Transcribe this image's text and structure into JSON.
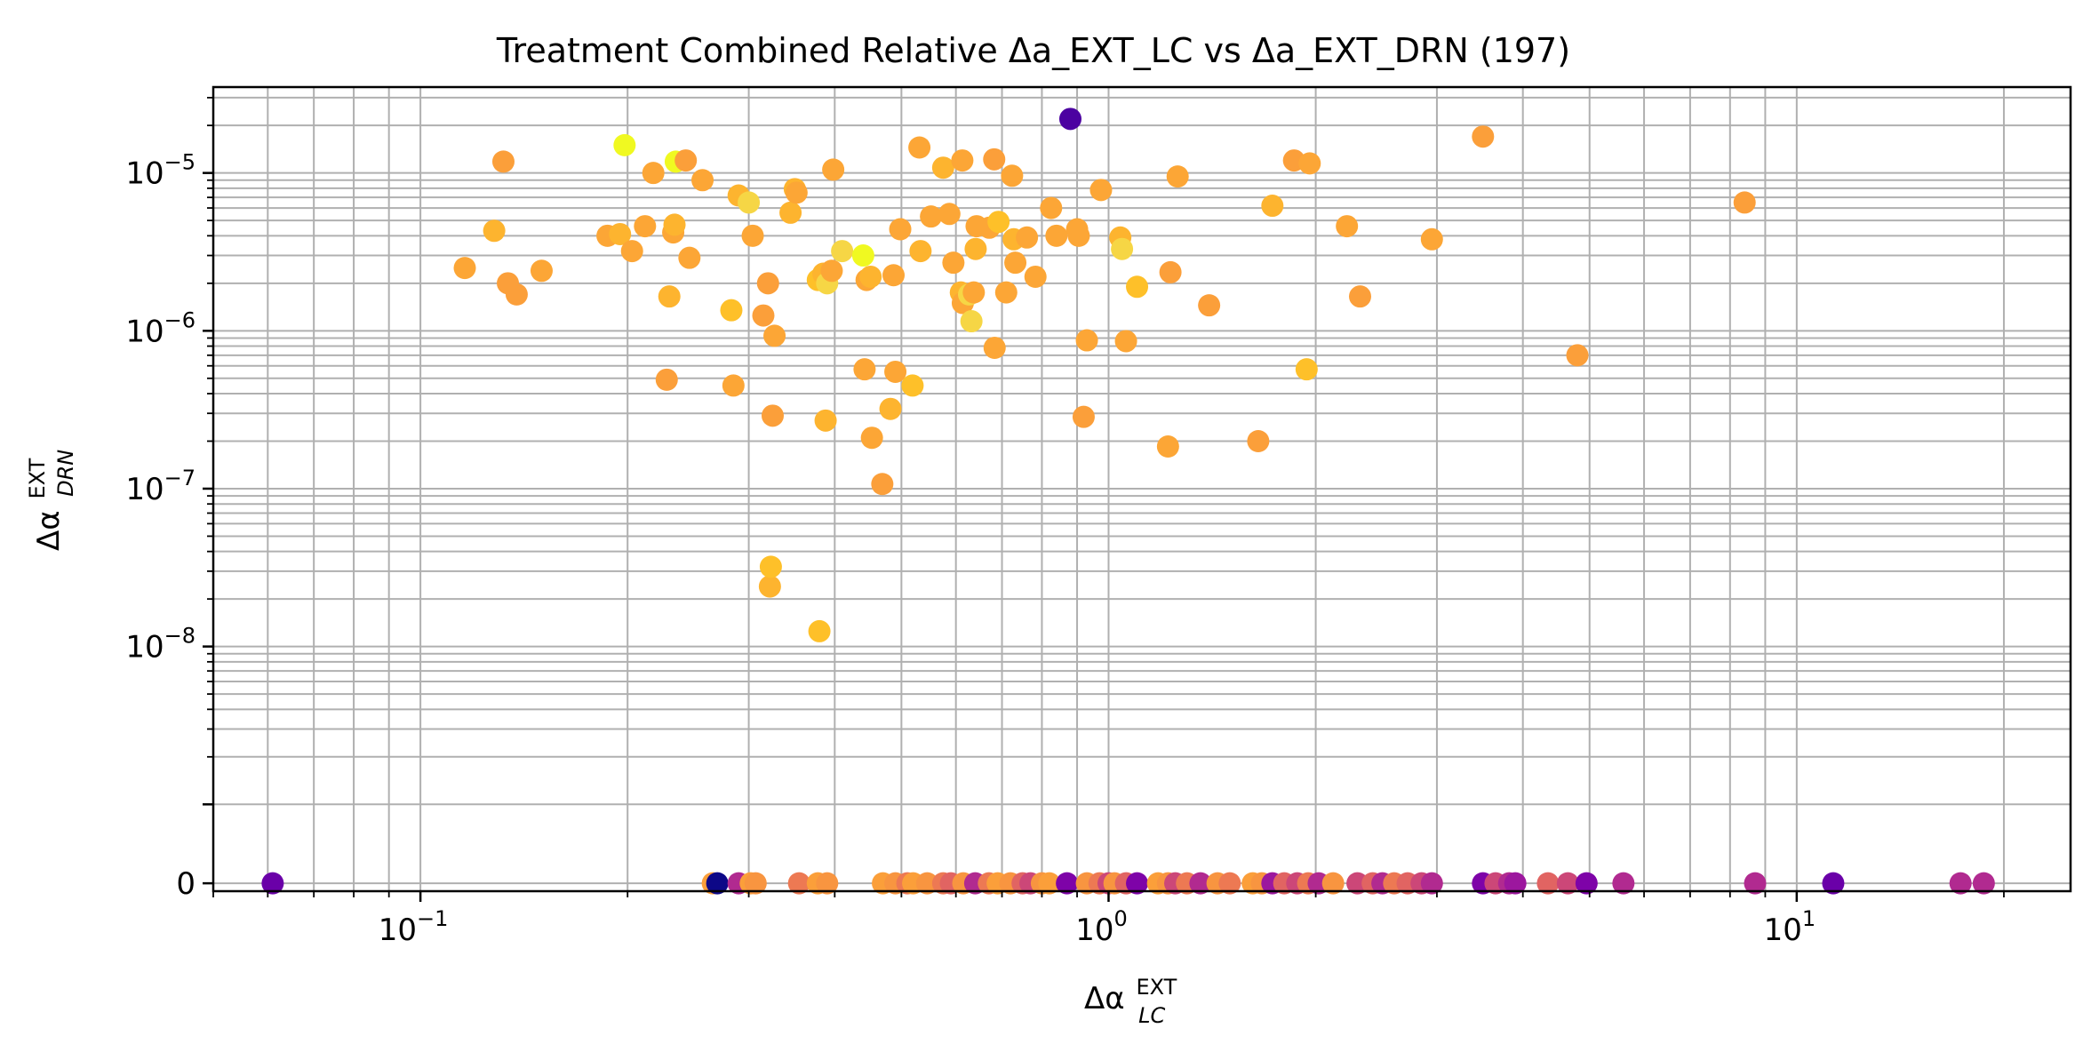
{
  "chart_data": {
    "type": "scatter",
    "title": "Treatment Combined Relative Δa_EXT_LC vs Δa_EXT_DRN (197)",
    "xlabel": {
      "base": "Δα",
      "sup": "EXT",
      "sub": "LC"
    },
    "ylabel": {
      "base": "Δα",
      "sup": "EXT",
      "sub": "DRN"
    },
    "x_scale": "log",
    "y_scale": "symlog",
    "y_linthresh": 1e-09,
    "xlim": [
      0.05,
      25
    ],
    "ylim": [
      -1e-10,
      3.5e-05
    ],
    "grid": true,
    "x_ticks": [
      {
        "value": 0.1,
        "base": "10",
        "exp": "−1"
      },
      {
        "value": 1,
        "base": "10",
        "exp": "0"
      },
      {
        "value": 10,
        "base": "10",
        "exp": "1"
      }
    ],
    "y_ticks": [
      {
        "value": 0,
        "label": "0"
      },
      {
        "value": 1e-08,
        "base": "10",
        "exp": "−8"
      },
      {
        "value": 1e-07,
        "base": "10",
        "exp": "−7"
      },
      {
        "value": 1e-06,
        "base": "10",
        "exp": "−6"
      },
      {
        "value": 1e-05,
        "base": "10",
        "exp": "−5"
      }
    ],
    "points": [
      [
        0.116,
        2.5e-06,
        "#fca636"
      ],
      [
        0.128,
        4.3e-06,
        "#fdb42f"
      ],
      [
        0.132,
        1.18e-05,
        "#fb9f3a"
      ],
      [
        0.134,
        2e-06,
        "#fb9f3a"
      ],
      [
        0.138,
        1.7e-06,
        "#fb9f3a"
      ],
      [
        0.15,
        2.4e-06,
        "#fca636"
      ],
      [
        0.187,
        4e-06,
        "#fca636"
      ],
      [
        0.195,
        4.1e-06,
        "#fdb42f"
      ],
      [
        0.198,
        1.5e-05,
        "#f0f921"
      ],
      [
        0.203,
        3.2e-06,
        "#fca636"
      ],
      [
        0.212,
        4.6e-06,
        "#fca636"
      ],
      [
        0.218,
        1e-05,
        "#fca636"
      ],
      [
        0.228,
        4.9e-07,
        "#fb9f3a"
      ],
      [
        0.23,
        1.65e-06,
        "#fdb42f"
      ],
      [
        0.233,
        4.2e-06,
        "#fca636"
      ],
      [
        0.234,
        4.7e-06,
        "#fdb42f"
      ],
      [
        0.235,
        1.18e-05,
        "#f0f921"
      ],
      [
        0.243,
        1.2e-05,
        "#fb9f3a"
      ],
      [
        0.246,
        2.9e-06,
        "#fca636"
      ],
      [
        0.257,
        9e-06,
        "#fca636"
      ],
      [
        0.283,
        1.35e-06,
        "#fec029"
      ],
      [
        0.285,
        4.5e-07,
        "#fca636"
      ],
      [
        0.29,
        7.2e-06,
        "#fdb42f"
      ],
      [
        0.3,
        6.5e-06,
        "#f6d645"
      ],
      [
        0.304,
        4e-06,
        "#fca636"
      ],
      [
        0.315,
        1.25e-06,
        "#fb9f3a"
      ],
      [
        0.32,
        2e-06,
        "#fb9f3a"
      ],
      [
        0.322,
        2.4e-08,
        "#fdb42f"
      ],
      [
        0.323,
        3.2e-08,
        "#fec029"
      ],
      [
        0.325,
        2.9e-07,
        "#fb9f3a"
      ],
      [
        0.327,
        9.3e-07,
        "#fca636"
      ],
      [
        0.345,
        5.6e-06,
        "#fdb42f"
      ],
      [
        0.35,
        7.9e-06,
        "#fdb42f"
      ],
      [
        0.352,
        7.5e-06,
        "#fca636"
      ],
      [
        0.378,
        2.1e-06,
        "#fec029"
      ],
      [
        0.38,
        1.25e-08,
        "#fec029"
      ],
      [
        0.385,
        2.3e-06,
        "#fdb42f"
      ],
      [
        0.388,
        2.7e-07,
        "#fdb42f"
      ],
      [
        0.39,
        2e-06,
        "#f6d645"
      ],
      [
        0.396,
        2.4e-06,
        "#fca636"
      ],
      [
        0.398,
        1.05e-05,
        "#fca636"
      ],
      [
        0.41,
        3.2e-06,
        "#f6d645"
      ],
      [
        0.44,
        3e-06,
        "#f0f921"
      ],
      [
        0.442,
        5.7e-07,
        "#fca636"
      ],
      [
        0.445,
        2.1e-06,
        "#fca636"
      ],
      [
        0.451,
        2.2e-06,
        "#fdb42f"
      ],
      [
        0.453,
        2.1e-07,
        "#fca636"
      ],
      [
        0.469,
        1.07e-07,
        "#fb9f3a"
      ],
      [
        0.482,
        3.2e-07,
        "#fdb42f"
      ],
      [
        0.487,
        2.25e-06,
        "#fca636"
      ],
      [
        0.49,
        5.5e-07,
        "#fca636"
      ],
      [
        0.498,
        4.4e-06,
        "#fca636"
      ],
      [
        0.519,
        4.5e-07,
        "#fec029"
      ],
      [
        0.531,
        1.45e-05,
        "#fca636"
      ],
      [
        0.533,
        3.2e-06,
        "#fdb42f"
      ],
      [
        0.552,
        5.3e-06,
        "#fca636"
      ],
      [
        0.575,
        1.08e-05,
        "#fdb42f"
      ],
      [
        0.587,
        5.5e-06,
        "#fca636"
      ],
      [
        0.595,
        2.7e-06,
        "#fca636"
      ],
      [
        0.61,
        1.75e-06,
        "#fdb42f"
      ],
      [
        0.613,
        1.2e-05,
        "#fca636"
      ],
      [
        0.614,
        1.5e-06,
        "#fca636"
      ],
      [
        0.627,
        1.7e-06,
        "#f6d645"
      ],
      [
        0.632,
        1.15e-06,
        "#f6d645"
      ],
      [
        0.637,
        1.75e-06,
        "#fca636"
      ],
      [
        0.641,
        3.3e-06,
        "#fdb42f"
      ],
      [
        0.643,
        4.6e-06,
        "#fca636"
      ],
      [
        0.671,
        4.5e-06,
        "#fca636"
      ],
      [
        0.682,
        1.22e-05,
        "#fb9f3a"
      ],
      [
        0.683,
        7.8e-07,
        "#fca636"
      ],
      [
        0.692,
        4.9e-06,
        "#fec029"
      ],
      [
        0.71,
        1.75e-06,
        "#fca636"
      ],
      [
        0.724,
        9.6e-06,
        "#fca636"
      ],
      [
        0.728,
        3.8e-06,
        "#fdb42f"
      ],
      [
        0.732,
        2.7e-06,
        "#fca636"
      ],
      [
        0.761,
        3.9e-06,
        "#fca636"
      ],
      [
        0.783,
        2.2e-06,
        "#fca636"
      ],
      [
        0.825,
        6e-06,
        "#fca636"
      ],
      [
        0.84,
        4e-06,
        "#fca636"
      ],
      [
        0.88,
        2.2e-05,
        "#4c02a1"
      ],
      [
        0.9,
        4.4e-06,
        "#fca636"
      ],
      [
        0.905,
        4e-06,
        "#fca636"
      ],
      [
        0.92,
        2.85e-07,
        "#fb9f3a"
      ],
      [
        0.93,
        8.7e-07,
        "#fca636"
      ],
      [
        0.975,
        7.8e-06,
        "#fca636"
      ],
      [
        1.04,
        3.9e-06,
        "#fdb42f"
      ],
      [
        1.046,
        3.3e-06,
        "#f6d645"
      ],
      [
        1.06,
        8.6e-07,
        "#fca636"
      ],
      [
        1.1,
        1.9e-06,
        "#fec029"
      ],
      [
        1.22,
        1.85e-07,
        "#fca636"
      ],
      [
        1.23,
        2.35e-06,
        "#fb9f3a"
      ],
      [
        1.26,
        9.5e-06,
        "#fca636"
      ],
      [
        1.4,
        1.45e-06,
        "#fb9f3a"
      ],
      [
        1.65,
        2e-07,
        "#fb9f3a"
      ],
      [
        1.73,
        6.2e-06,
        "#fdb42f"
      ],
      [
        1.86,
        1.2e-05,
        "#fb9f3a"
      ],
      [
        1.94,
        5.7e-07,
        "#fec029"
      ],
      [
        1.96,
        1.15e-05,
        "#fca636"
      ],
      [
        2.22,
        4.6e-06,
        "#fca636"
      ],
      [
        2.32,
        1.65e-06,
        "#fb9f3a"
      ],
      [
        2.95,
        3.8e-06,
        "#fca636"
      ],
      [
        3.5,
        1.7e-05,
        "#fb9f3a"
      ],
      [
        4.8,
        7e-07,
        "#fb9f3a"
      ],
      [
        8.4,
        6.5e-06,
        "#fb9f3a"
      ],
      [
        0.061,
        0,
        "#6a00a8"
      ],
      [
        0.266,
        0,
        "#fb9f3a"
      ],
      [
        0.27,
        0,
        "#0d0887"
      ],
      [
        0.29,
        0,
        "#b12a90"
      ],
      [
        0.302,
        0,
        "#fb9f3a"
      ],
      [
        0.307,
        0,
        "#f89540"
      ],
      [
        0.355,
        0,
        "#ed7953"
      ],
      [
        0.378,
        0,
        "#fb9f3a"
      ],
      [
        0.39,
        0,
        "#f89540"
      ],
      [
        0.47,
        0,
        "#fb9f3a"
      ],
      [
        0.49,
        0,
        "#f89540"
      ],
      [
        0.51,
        0,
        "#ed7953"
      ],
      [
        0.52,
        0,
        "#fb9f3a"
      ],
      [
        0.545,
        0,
        "#f89540"
      ],
      [
        0.575,
        0,
        "#ed7953"
      ],
      [
        0.59,
        0,
        "#e16462"
      ],
      [
        0.615,
        0,
        "#f89540"
      ],
      [
        0.64,
        0,
        "#b12a90"
      ],
      [
        0.67,
        0,
        "#ed7953"
      ],
      [
        0.69,
        0,
        "#fb9f3a"
      ],
      [
        0.72,
        0,
        "#f89540"
      ],
      [
        0.75,
        0,
        "#e16462"
      ],
      [
        0.77,
        0,
        "#cc4778"
      ],
      [
        0.8,
        0,
        "#f89540"
      ],
      [
        0.82,
        0,
        "#fb9f3a"
      ],
      [
        0.87,
        0,
        "#7e03a8"
      ],
      [
        0.93,
        0,
        "#f89540"
      ],
      [
        0.97,
        0,
        "#ed7953"
      ],
      [
        1.0,
        0,
        "#cc4778"
      ],
      [
        1.02,
        0,
        "#f89540"
      ],
      [
        1.06,
        0,
        "#e16462"
      ],
      [
        1.1,
        0,
        "#7e03a8"
      ],
      [
        1.18,
        0,
        "#fb9f3a"
      ],
      [
        1.22,
        0,
        "#f89540"
      ],
      [
        1.25,
        0,
        "#cc4778"
      ],
      [
        1.3,
        0,
        "#ed7953"
      ],
      [
        1.36,
        0,
        "#b12a90"
      ],
      [
        1.44,
        0,
        "#f89540"
      ],
      [
        1.5,
        0,
        "#ed7953"
      ],
      [
        1.62,
        0,
        "#fb9f3a"
      ],
      [
        1.67,
        0,
        "#f89540"
      ],
      [
        1.73,
        0,
        "#9c179e"
      ],
      [
        1.8,
        0,
        "#e16462"
      ],
      [
        1.88,
        0,
        "#cc4778"
      ],
      [
        1.95,
        0,
        "#ed7953"
      ],
      [
        2.02,
        0,
        "#b12a90"
      ],
      [
        2.12,
        0,
        "#f89540"
      ],
      [
        2.3,
        0,
        "#cc4778"
      ],
      [
        2.42,
        0,
        "#e16462"
      ],
      [
        2.5,
        0,
        "#b12a90"
      ],
      [
        2.6,
        0,
        "#ed7953"
      ],
      [
        2.72,
        0,
        "#e16462"
      ],
      [
        2.85,
        0,
        "#cc4778"
      ],
      [
        2.95,
        0,
        "#b12a90"
      ],
      [
        3.5,
        0,
        "#7e03a8"
      ],
      [
        3.65,
        0,
        "#cc4778"
      ],
      [
        3.82,
        0,
        "#b12a90"
      ],
      [
        3.9,
        0,
        "#9c179e"
      ],
      [
        4.35,
        0,
        "#e16462"
      ],
      [
        4.65,
        0,
        "#cc4778"
      ],
      [
        4.95,
        0,
        "#7e03a8"
      ],
      [
        5.6,
        0,
        "#b12a90"
      ],
      [
        8.7,
        0,
        "#b12a90"
      ],
      [
        11.3,
        0,
        "#6a00a8"
      ],
      [
        17.3,
        0,
        "#b12a90"
      ],
      [
        18.7,
        0,
        "#b12a90"
      ]
    ]
  }
}
